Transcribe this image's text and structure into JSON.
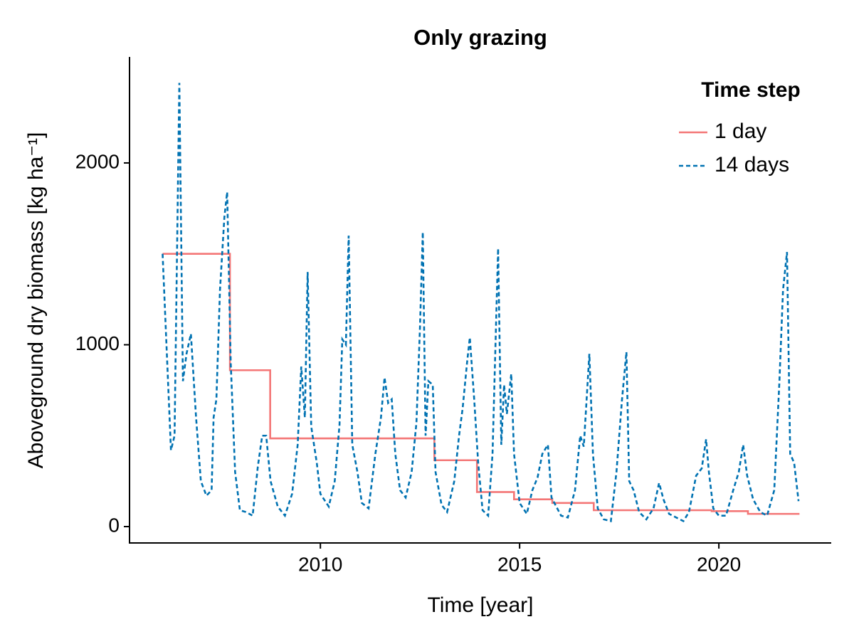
{
  "chart_data": {
    "type": "line",
    "title": "Only grazing",
    "x_label": "Time [year]",
    "y_label": "Aboveground dry biomass [kg ha⁻¹]",
    "xlim": [
      2005.21,
      2022.82
    ],
    "ylim": [
      -90,
      2583
    ],
    "xticks": [
      2010,
      2015,
      2020
    ],
    "yticks": [
      0,
      1000,
      2000
    ],
    "grid": false,
    "legend": {
      "title": "Time step",
      "position": "upper right"
    },
    "series": [
      {
        "name": "1 day",
        "color": "#f47676",
        "linestyle": "solid",
        "step": "post",
        "x": [
          2006.04,
          2007.73,
          2008.74,
          2012.86,
          2013.93,
          2014.86,
          2015.82,
          2016.86,
          2017.86,
          2019.82,
          2020.73,
          2022.0
        ],
        "values": [
          1500,
          860,
          485,
          365,
          190,
          150,
          130,
          90,
          90,
          85,
          70,
          65
        ]
      },
      {
        "name": "14 days",
        "color": "#0072b2",
        "linestyle": "dashed",
        "x": [
          2006.04,
          2006.25,
          2006.34,
          2006.46,
          2006.55,
          2006.64,
          2006.75,
          2006.88,
          2007.0,
          2007.14,
          2007.27,
          2007.32,
          2007.39,
          2007.48,
          2007.59,
          2007.66,
          2007.75,
          2007.86,
          2007.98,
          2008.13,
          2008.3,
          2008.43,
          2008.54,
          2008.64,
          2008.75,
          2008.93,
          2009.11,
          2009.29,
          2009.43,
          2009.52,
          2009.61,
          2009.68,
          2009.77,
          2009.91,
          2010.0,
          2010.21,
          2010.36,
          2010.48,
          2010.55,
          2010.64,
          2010.71,
          2010.8,
          2010.93,
          2011.04,
          2011.21,
          2011.38,
          2011.52,
          2011.61,
          2011.7,
          2011.79,
          2011.88,
          2012.0,
          2012.14,
          2012.29,
          2012.41,
          2012.5,
          2012.57,
          2012.64,
          2012.71,
          2012.82,
          2012.89,
          2013.04,
          2013.18,
          2013.36,
          2013.48,
          2013.57,
          2013.68,
          2013.75,
          2013.86,
          2013.96,
          2014.07,
          2014.21,
          2014.32,
          2014.46,
          2014.54,
          2014.61,
          2014.68,
          2014.79,
          2014.86,
          2015.0,
          2015.18,
          2015.32,
          2015.45,
          2015.57,
          2015.71,
          2015.8,
          2016.04,
          2016.21,
          2016.39,
          2016.52,
          2016.61,
          2016.75,
          2016.84,
          2016.96,
          2017.11,
          2017.29,
          2017.43,
          2017.57,
          2017.68,
          2017.75,
          2017.86,
          2018.0,
          2018.18,
          2018.36,
          2018.5,
          2018.61,
          2018.75,
          2018.93,
          2019.11,
          2019.25,
          2019.43,
          2019.57,
          2019.68,
          2019.75,
          2019.86,
          2020.0,
          2020.18,
          2020.36,
          2020.5,
          2020.61,
          2020.71,
          2020.86,
          2021.04,
          2021.21,
          2021.39,
          2021.52,
          2021.61,
          2021.71,
          2021.79,
          2021.89,
          2022.0
        ],
        "values": [
          1500,
          420,
          500,
          2440,
          800,
          950,
          1060,
          600,
          250,
          170,
          200,
          600,
          700,
          1300,
          1700,
          1840,
          900,
          300,
          90,
          80,
          60,
          330,
          500,
          500,
          250,
          110,
          60,
          180,
          450,
          880,
          600,
          1400,
          550,
          350,
          180,
          110,
          250,
          560,
          1030,
          1000,
          1600,
          450,
          300,
          130,
          100,
          400,
          600,
          820,
          680,
          700,
          400,
          200,
          160,
          300,
          570,
          1100,
          1620,
          500,
          800,
          780,
          300,
          120,
          80,
          250,
          500,
          650,
          900,
          1040,
          700,
          350,
          90,
          60,
          400,
          1530,
          450,
          780,
          620,
          840,
          400,
          130,
          70,
          200,
          270,
          400,
          450,
          160,
          60,
          50,
          200,
          500,
          440,
          950,
          400,
          100,
          40,
          30,
          300,
          700,
          960,
          250,
          200,
          80,
          40,
          100,
          240,
          150,
          70,
          50,
          30,
          80,
          280,
          320,
          480,
          300,
          100,
          60,
          60,
          200,
          300,
          450,
          280,
          150,
          80,
          60,
          200,
          800,
          1300,
          1510,
          400,
          350,
          140
        ]
      }
    ]
  }
}
